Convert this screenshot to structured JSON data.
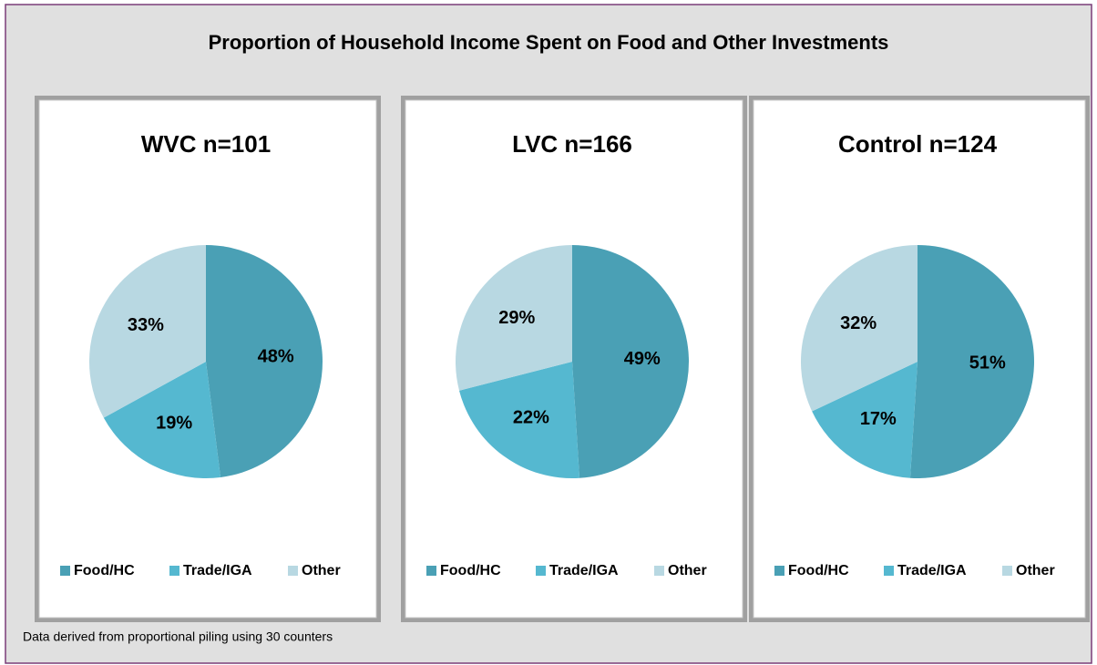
{
  "title": "Proportion of Household Income Spent on Food and Other Investments",
  "note": "Data derived from proportional piling using 30 counters",
  "chart_data": [
    {
      "type": "pie",
      "title": "WVC n=101",
      "categories": [
        "Food/HC",
        "Trade/IGA",
        "Other"
      ],
      "values": [
        48,
        19,
        33
      ],
      "value_labels": [
        "48%",
        "19%",
        "33%"
      ],
      "colors": [
        "#4aa0b5",
        "#55b8d0",
        "#b8d8e2"
      ]
    },
    {
      "type": "pie",
      "title": "LVC n=166",
      "categories": [
        "Food/HC",
        "Trade/IGA",
        "Other"
      ],
      "values": [
        49,
        22,
        29
      ],
      "value_labels": [
        "49%",
        "22%",
        "29%"
      ],
      "colors": [
        "#4aa0b5",
        "#55b8d0",
        "#b8d8e2"
      ]
    },
    {
      "type": "pie",
      "title": "Control n=124",
      "categories": [
        "Food/HC",
        "Trade/IGA",
        "Other"
      ],
      "values": [
        51,
        17,
        32
      ],
      "value_labels": [
        "51%",
        "17%",
        "32%"
      ],
      "colors": [
        "#4aa0b5",
        "#55b8d0",
        "#b8d8e2"
      ]
    }
  ]
}
